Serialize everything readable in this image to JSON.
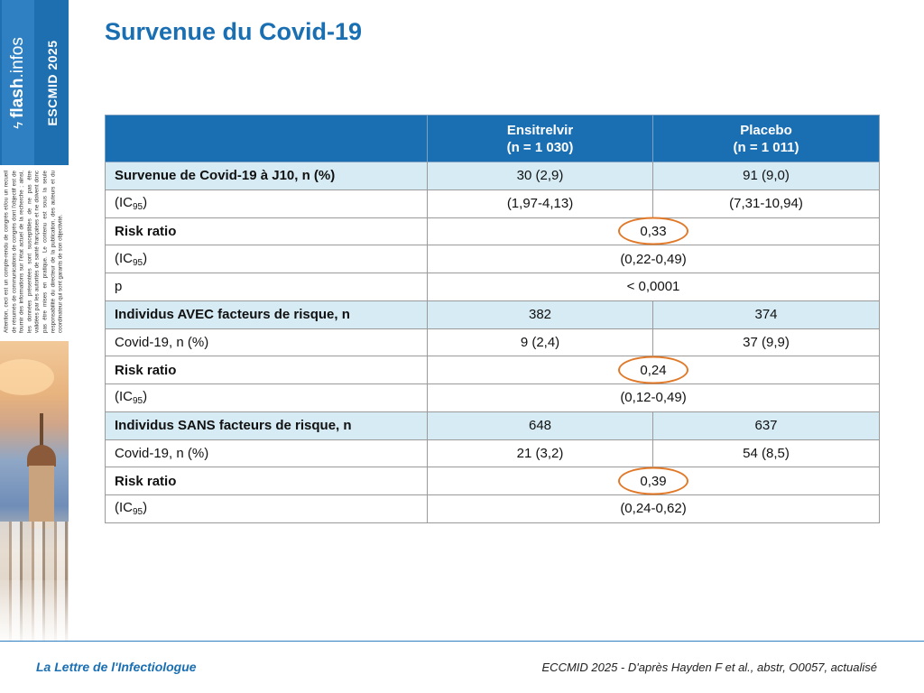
{
  "sidebar": {
    "brand_flash": "flash",
    "brand_infos": ".infos",
    "event": "ESCMID 2025",
    "disclaimer": "Attention, ceci est un compte-rendu de congrès et/ou un recueil de résumés de communications de congrès dont l'objectif est de fournir des informations sur l'état actuel de la recherche ; ainsi, les données présentées sont susceptibles de ne pas être validées par les autorités de santé françaises et ne doivent donc pas être mises en pratique. Le contenu est sous la seule responsabilité du directeur de la publication, des auteurs et du coordinateur qui sont garants de son objectivité."
  },
  "page": {
    "title": "Survenue du Covid-19"
  },
  "table": {
    "header": {
      "col_a_name": "Ensitrelvir",
      "col_a_n": "(n = 1 030)",
      "col_b_name": "Placebo",
      "col_b_n": "(n = 1 011)"
    },
    "rows": [
      {
        "label": "Survenue de Covid-19 à J10, n (%)",
        "a": "30 (2,9)",
        "b": "91 (9,0)"
      },
      {
        "label_prefix": "(IC",
        "label_sub": "95",
        "label_suffix": ")",
        "a": "(1,97-4,13)",
        "b": "(7,31-10,94)"
      },
      {
        "label": "Risk ratio",
        "merged": "0,33"
      },
      {
        "label_prefix": "(IC",
        "label_sub": "95",
        "label_suffix": ")",
        "merged": "(0,22-0,49)"
      },
      {
        "label": "p",
        "merged": "< 0,0001"
      },
      {
        "label": "Individus AVEC facteurs de risque, n",
        "a": "382",
        "b": "374"
      },
      {
        "label": "Covid-19, n (%)",
        "a": "9 (2,4)",
        "b": "37 (9,9)"
      },
      {
        "label": "Risk ratio",
        "merged": "0,24"
      },
      {
        "label_prefix": "(IC",
        "label_sub": "95",
        "label_suffix": ")",
        "merged": "(0,12-0,49)"
      },
      {
        "label": "Individus SANS facteurs de risque, n",
        "a": "648",
        "b": "637"
      },
      {
        "label": "Covid-19, n (%)",
        "a": "21 (3,2)",
        "b": "54 (8,5)"
      },
      {
        "label": "Risk ratio",
        "merged": "0,39"
      },
      {
        "label_prefix": "(IC",
        "label_sub": "95",
        "label_suffix": ")",
        "merged": "(0,24-0,62)"
      }
    ]
  },
  "footer": {
    "left": "La Lettre de l'Infectiologue",
    "right": "ECCMID 2025 - D'après Hayden F et al., abstr, O0057, actualisé"
  },
  "colors": {
    "brand_blue": "#1a6fb3",
    "section_row": "#d6ebf4",
    "highlight_circle": "#e07a2a"
  }
}
